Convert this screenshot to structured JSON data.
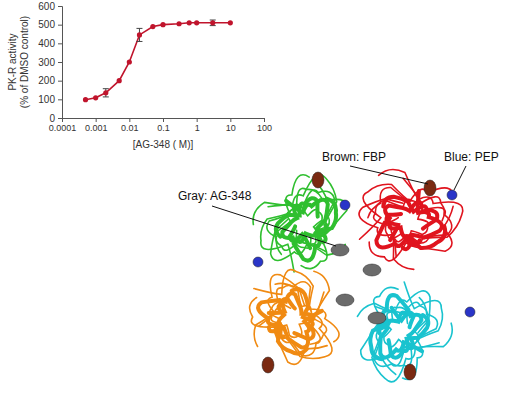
{
  "chart_data": {
    "type": "line",
    "x": [
      0.0005,
      0.001,
      0.002,
      0.005,
      0.01,
      0.02,
      0.05,
      0.1,
      0.3,
      0.6,
      1,
      3,
      10
    ],
    "values": [
      98,
      108,
      135,
      200,
      300,
      445,
      490,
      500,
      505,
      510,
      510,
      510,
      510
    ],
    "errors": [
      null,
      null,
      22,
      null,
      null,
      35,
      null,
      null,
      null,
      null,
      null,
      15,
      null
    ],
    "color": "#c0142c",
    "marker": "circle",
    "log": "x",
    "xlim": [
      0.0001,
      100
    ],
    "xticks": [
      0.0001,
      0.001,
      0.01,
      0.1,
      1,
      10,
      100
    ],
    "ylim": [
      0,
      600
    ],
    "yticks": [
      0,
      100,
      200,
      300,
      400,
      500,
      600
    ],
    "x_label": "[AG-348 (  M)]",
    "y_label": [
      "PK-R activity",
      "(% of DMSO control)"
    ]
  },
  "structure": {
    "labels": [
      "Gray: AG-348",
      "Brown: FBP",
      "Blue: PEP"
    ]
  }
}
